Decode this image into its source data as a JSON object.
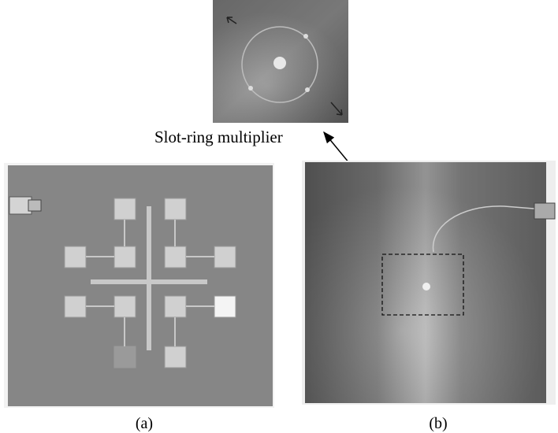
{
  "annotation": "Slot-ring multiplier",
  "panels": [
    {
      "label": "(a)"
    },
    {
      "label": "(b)"
    }
  ]
}
